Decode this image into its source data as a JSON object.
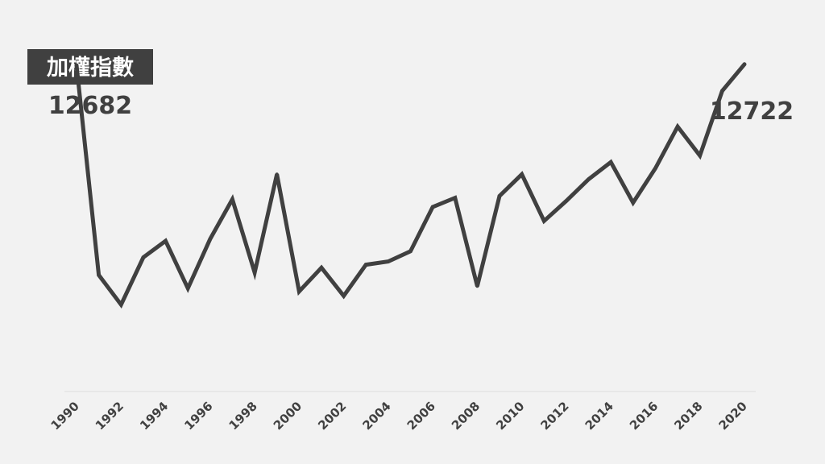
{
  "chart_data": {
    "type": "line",
    "title": "加權指數",
    "xlabel": "",
    "ylabel": "",
    "x": [
      1990,
      1991,
      1992,
      1993,
      1994,
      1995,
      1996,
      1997,
      1998,
      1999,
      2000,
      2001,
      2002,
      2003,
      2004,
      2005,
      2006,
      2007,
      2008,
      2009,
      2010,
      2011,
      2012,
      2013,
      2014,
      2015,
      2016,
      2017,
      2018,
      2019,
      2020
    ],
    "series": [
      {
        "values": [
          12682,
          4530,
          3377,
          5215,
          5853,
          4012,
          5925,
          7472,
          4624,
          8449,
          3889,
          4814,
          3719,
          4930,
          5055,
          5454,
          7176,
          7529,
          4095,
          7601,
          8446,
          6632,
          7410,
          8253,
          8917,
          7341,
          8680,
          10299,
          9171,
          11685,
          12722
        ]
      }
    ],
    "xticks": [
      "1990",
      "1992",
      "1994",
      "1996",
      "1998",
      "2000",
      "2002",
      "2004",
      "2006",
      "2008",
      "2010",
      "2012",
      "2014",
      "2016",
      "2018",
      "2020"
    ],
    "annotations": {
      "start_value": "12682",
      "end_value": "12722"
    },
    "ylim": [
      0,
      13500
    ],
    "grid": false,
    "legend": "none",
    "line_color": "#404040"
  }
}
